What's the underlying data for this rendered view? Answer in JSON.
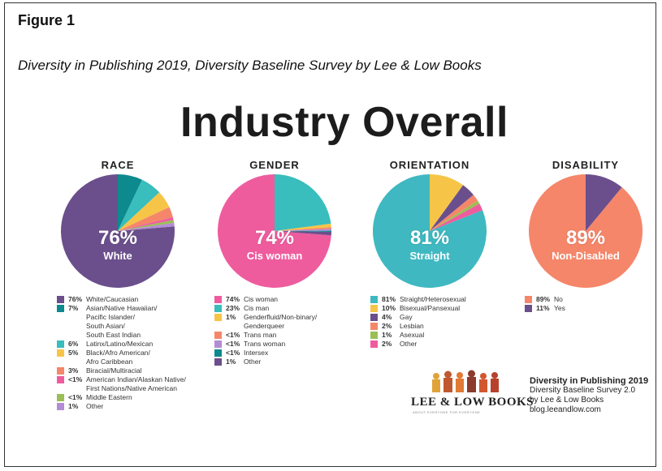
{
  "figure": {
    "label": "Figure 1",
    "caption": "Diversity in Publishing 2019, Diversity Baseline Survey by Lee & Low Books"
  },
  "colors": {
    "purple": "#6b4f8c",
    "teal": "#19a3a3",
    "lightteal": "#39bdbd",
    "yellow": "#f6c548",
    "salmon": "#f5866a",
    "pink": "#ee5c9e",
    "green": "#9bbe55",
    "lavender": "#b38cd6",
    "darkteal": "#0c8a8e",
    "cyanpie": "#3fb8c1"
  },
  "chart_data": {
    "type": "pie",
    "title": "Industry Overall",
    "charts": [
      {
        "key": "race",
        "title": "RACE",
        "big": "76%",
        "sub": "White",
        "slices": [
          {
            "label": "White/Caucasian",
            "pct_label": "76%",
            "value": 76,
            "color": "#6b4f8c"
          },
          {
            "label": "Asian/Native Hawaiian/\nPacific Islander/\nSouth Asian/\nSouth East Indian",
            "pct_label": "7%",
            "value": 7,
            "color": "#0c8a8e"
          },
          {
            "label": "Latinx/Latino/Mexican",
            "pct_label": "6%",
            "value": 6,
            "color": "#39bdbd"
          },
          {
            "label": "Black/Afro American/\nAfro Caribbean",
            "pct_label": "5%",
            "value": 5,
            "color": "#f6c548"
          },
          {
            "label": "Biracial/Multiracial",
            "pct_label": "3%",
            "value": 3,
            "color": "#f5866a"
          },
          {
            "label": "American Indian/Alaskan Native/\nFirst Nations/Native American",
            "pct_label": "<1%",
            "value": 0.8,
            "color": "#ee5c9e"
          },
          {
            "label": "Middle Eastern",
            "pct_label": "<1%",
            "value": 0.8,
            "color": "#9bbe55"
          },
          {
            "label": "Other",
            "pct_label": "1%",
            "value": 1,
            "color": "#b38cd6"
          }
        ]
      },
      {
        "key": "gender",
        "title": "GENDER",
        "big": "74%",
        "sub": "Cis woman",
        "slices": [
          {
            "label": "Cis woman",
            "pct_label": "74%",
            "value": 74,
            "color": "#ee5c9e"
          },
          {
            "label": "Cis man",
            "pct_label": "23%",
            "value": 23,
            "color": "#39bdbd"
          },
          {
            "label": "Genderfluid/Non-binary/\nGenderqueer",
            "pct_label": "1%",
            "value": 1,
            "color": "#f6c548"
          },
          {
            "label": "Trans man",
            "pct_label": "<1%",
            "value": 0.5,
            "color": "#f5866a"
          },
          {
            "label": "Trans woman",
            "pct_label": "<1%",
            "value": 0.5,
            "color": "#b38cd6"
          },
          {
            "label": "Intersex",
            "pct_label": "<1%",
            "value": 0.3,
            "color": "#0c8a8e"
          },
          {
            "label": "Other",
            "pct_label": "1%",
            "value": 1,
            "color": "#6b4f8c"
          }
        ]
      },
      {
        "key": "orientation",
        "title": "ORIENTATION",
        "big": "81%",
        "sub": "Straight",
        "slices": [
          {
            "label": "Straight/Heterosexual",
            "pct_label": "81%",
            "value": 81,
            "color": "#3fb8c1"
          },
          {
            "label": "Bisexual/Pansexual",
            "pct_label": "10%",
            "value": 10,
            "color": "#f6c548"
          },
          {
            "label": "Gay",
            "pct_label": "4%",
            "value": 4,
            "color": "#6b4f8c"
          },
          {
            "label": "Lesbian",
            "pct_label": "2%",
            "value": 2,
            "color": "#f5866a"
          },
          {
            "label": "Asexual",
            "pct_label": "1%",
            "value": 1,
            "color": "#9bbe55"
          },
          {
            "label": "Other",
            "pct_label": "2%",
            "value": 2,
            "color": "#ee5c9e"
          }
        ]
      },
      {
        "key": "disability",
        "title": "DISABILITY",
        "big": "89%",
        "sub": "Non-Disabled",
        "slices": [
          {
            "label": "No",
            "pct_label": "89%",
            "value": 89,
            "color": "#f5866a"
          },
          {
            "label": "Yes",
            "pct_label": "11%",
            "value": 11,
            "color": "#6b4f8c"
          }
        ]
      }
    ]
  },
  "footer": {
    "logo_text": "LEE & LOW BOOKS",
    "logo_tagline": "ABOUT EVERYONE  FOR EVERYONE",
    "survey_title": "Diversity in Publishing 2019",
    "survey_line2": "Diversity Baseline Survey 2.0",
    "survey_line3": "by Lee & Low Books",
    "survey_line4": "blog.leeandlow.com"
  }
}
